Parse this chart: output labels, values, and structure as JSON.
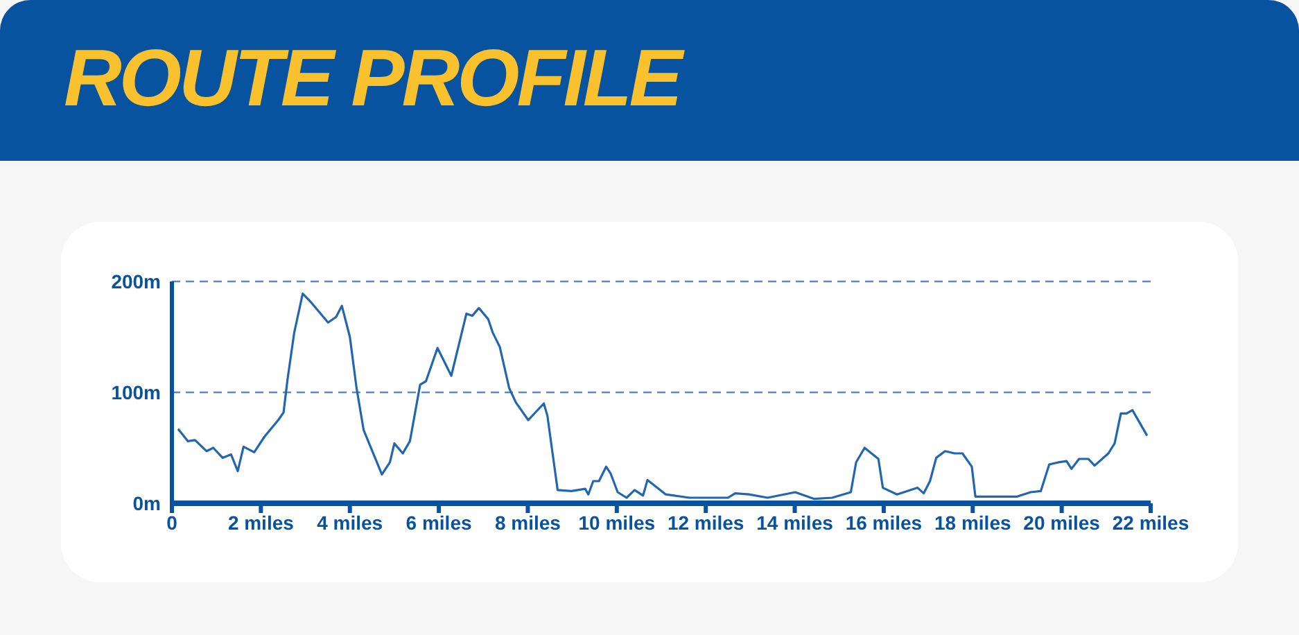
{
  "chart_data": {
    "type": "line",
    "title": "ROUTE PROFILE",
    "x": [
      0.14,
      0.36,
      0.52,
      0.78,
      0.93,
      1.14,
      1.33,
      1.48,
      1.61,
      1.85,
      2.08,
      2.39,
      2.51,
      2.6,
      2.75,
      2.94,
      3.11,
      3.51,
      3.69,
      3.82,
      4.0,
      4.15,
      4.31,
      4.72,
      4.9,
      5.0,
      5.19,
      5.35,
      5.58,
      5.71,
      5.97,
      6.28,
      6.62,
      6.75,
      6.9,
      7.11,
      7.21,
      7.37,
      7.58,
      7.73,
      8.01,
      8.36,
      8.44,
      8.67,
      8.98,
      9.29,
      9.36,
      9.47,
      9.6,
      9.76,
      9.86,
      10.02,
      10.22,
      10.4,
      10.59,
      10.69,
      10.85,
      11.1,
      11.63,
      12.5,
      12.66,
      12.97,
      13.39,
      14.01,
      14.43,
      14.84,
      15.26,
      15.38,
      15.57,
      15.88,
      15.98,
      16.3,
      16.76,
      16.9,
      17.04,
      17.18,
      17.38,
      17.59,
      17.77,
      17.98,
      18.06,
      18.99,
      19.3,
      19.53,
      19.72,
      19.93,
      20.11,
      20.22,
      20.39,
      20.6,
      20.74,
      21.05,
      21.19,
      21.33,
      21.46,
      21.59,
      21.92
    ],
    "series": [
      {
        "color": "#2166ae",
        "values": [
          67,
          56,
          57,
          47,
          50,
          41,
          44,
          29,
          51,
          46,
          60,
          75,
          82,
          112,
          154,
          189,
          182,
          163,
          168,
          178,
          150,
          104,
          66,
          26,
          37,
          54,
          45,
          56,
          107,
          110,
          140,
          115,
          171,
          169,
          176,
          166,
          154,
          141,
          104,
          91,
          75,
          90,
          79,
          12,
          11,
          13,
          8,
          20,
          20,
          33,
          27,
          10,
          5,
          12,
          7,
          21,
          16,
          8,
          5,
          5,
          9,
          8,
          5,
          10,
          4,
          5,
          10,
          37,
          50,
          40,
          14,
          8,
          14,
          9,
          20,
          41,
          47,
          45,
          45,
          33,
          6,
          6,
          10,
          11,
          35,
          37,
          38,
          31,
          40,
          40,
          34,
          45,
          54,
          81,
          81,
          84,
          61
        ]
      }
    ],
    "xlim": [
      0,
      22
    ],
    "xticks": [
      0,
      {
        "value": 2,
        "label": "2 miles"
      },
      {
        "value": 4,
        "label": "4 miles"
      },
      {
        "value": 6,
        "label": "6 miles"
      },
      {
        "value": 8,
        "label": "8 miles"
      },
      {
        "value": 10,
        "label": "10 miles"
      },
      {
        "value": 12,
        "label": "12 miles"
      },
      {
        "value": 14,
        "label": "14 miles"
      },
      {
        "value": 16,
        "label": "16 miles"
      },
      {
        "value": 18,
        "label": "18 miles"
      },
      {
        "value": 20,
        "label": "20 miles"
      },
      {
        "value": 22,
        "label": "22 miles"
      }
    ],
    "ylim": [
      0,
      200
    ],
    "yticks": [
      {
        "value": 0,
        "label": "0m"
      },
      {
        "value": 100,
        "label": "100m"
      },
      {
        "value": 200,
        "label": "200m"
      }
    ],
    "ref_lines": [
      {
        "axis": "y",
        "value": 100,
        "color": "#5a88bf",
        "line_style": "dashed"
      },
      {
        "axis": "y",
        "value": 200,
        "color": "#5a88bf",
        "line_style": "dashed"
      }
    ],
    "legend": false
  }
}
